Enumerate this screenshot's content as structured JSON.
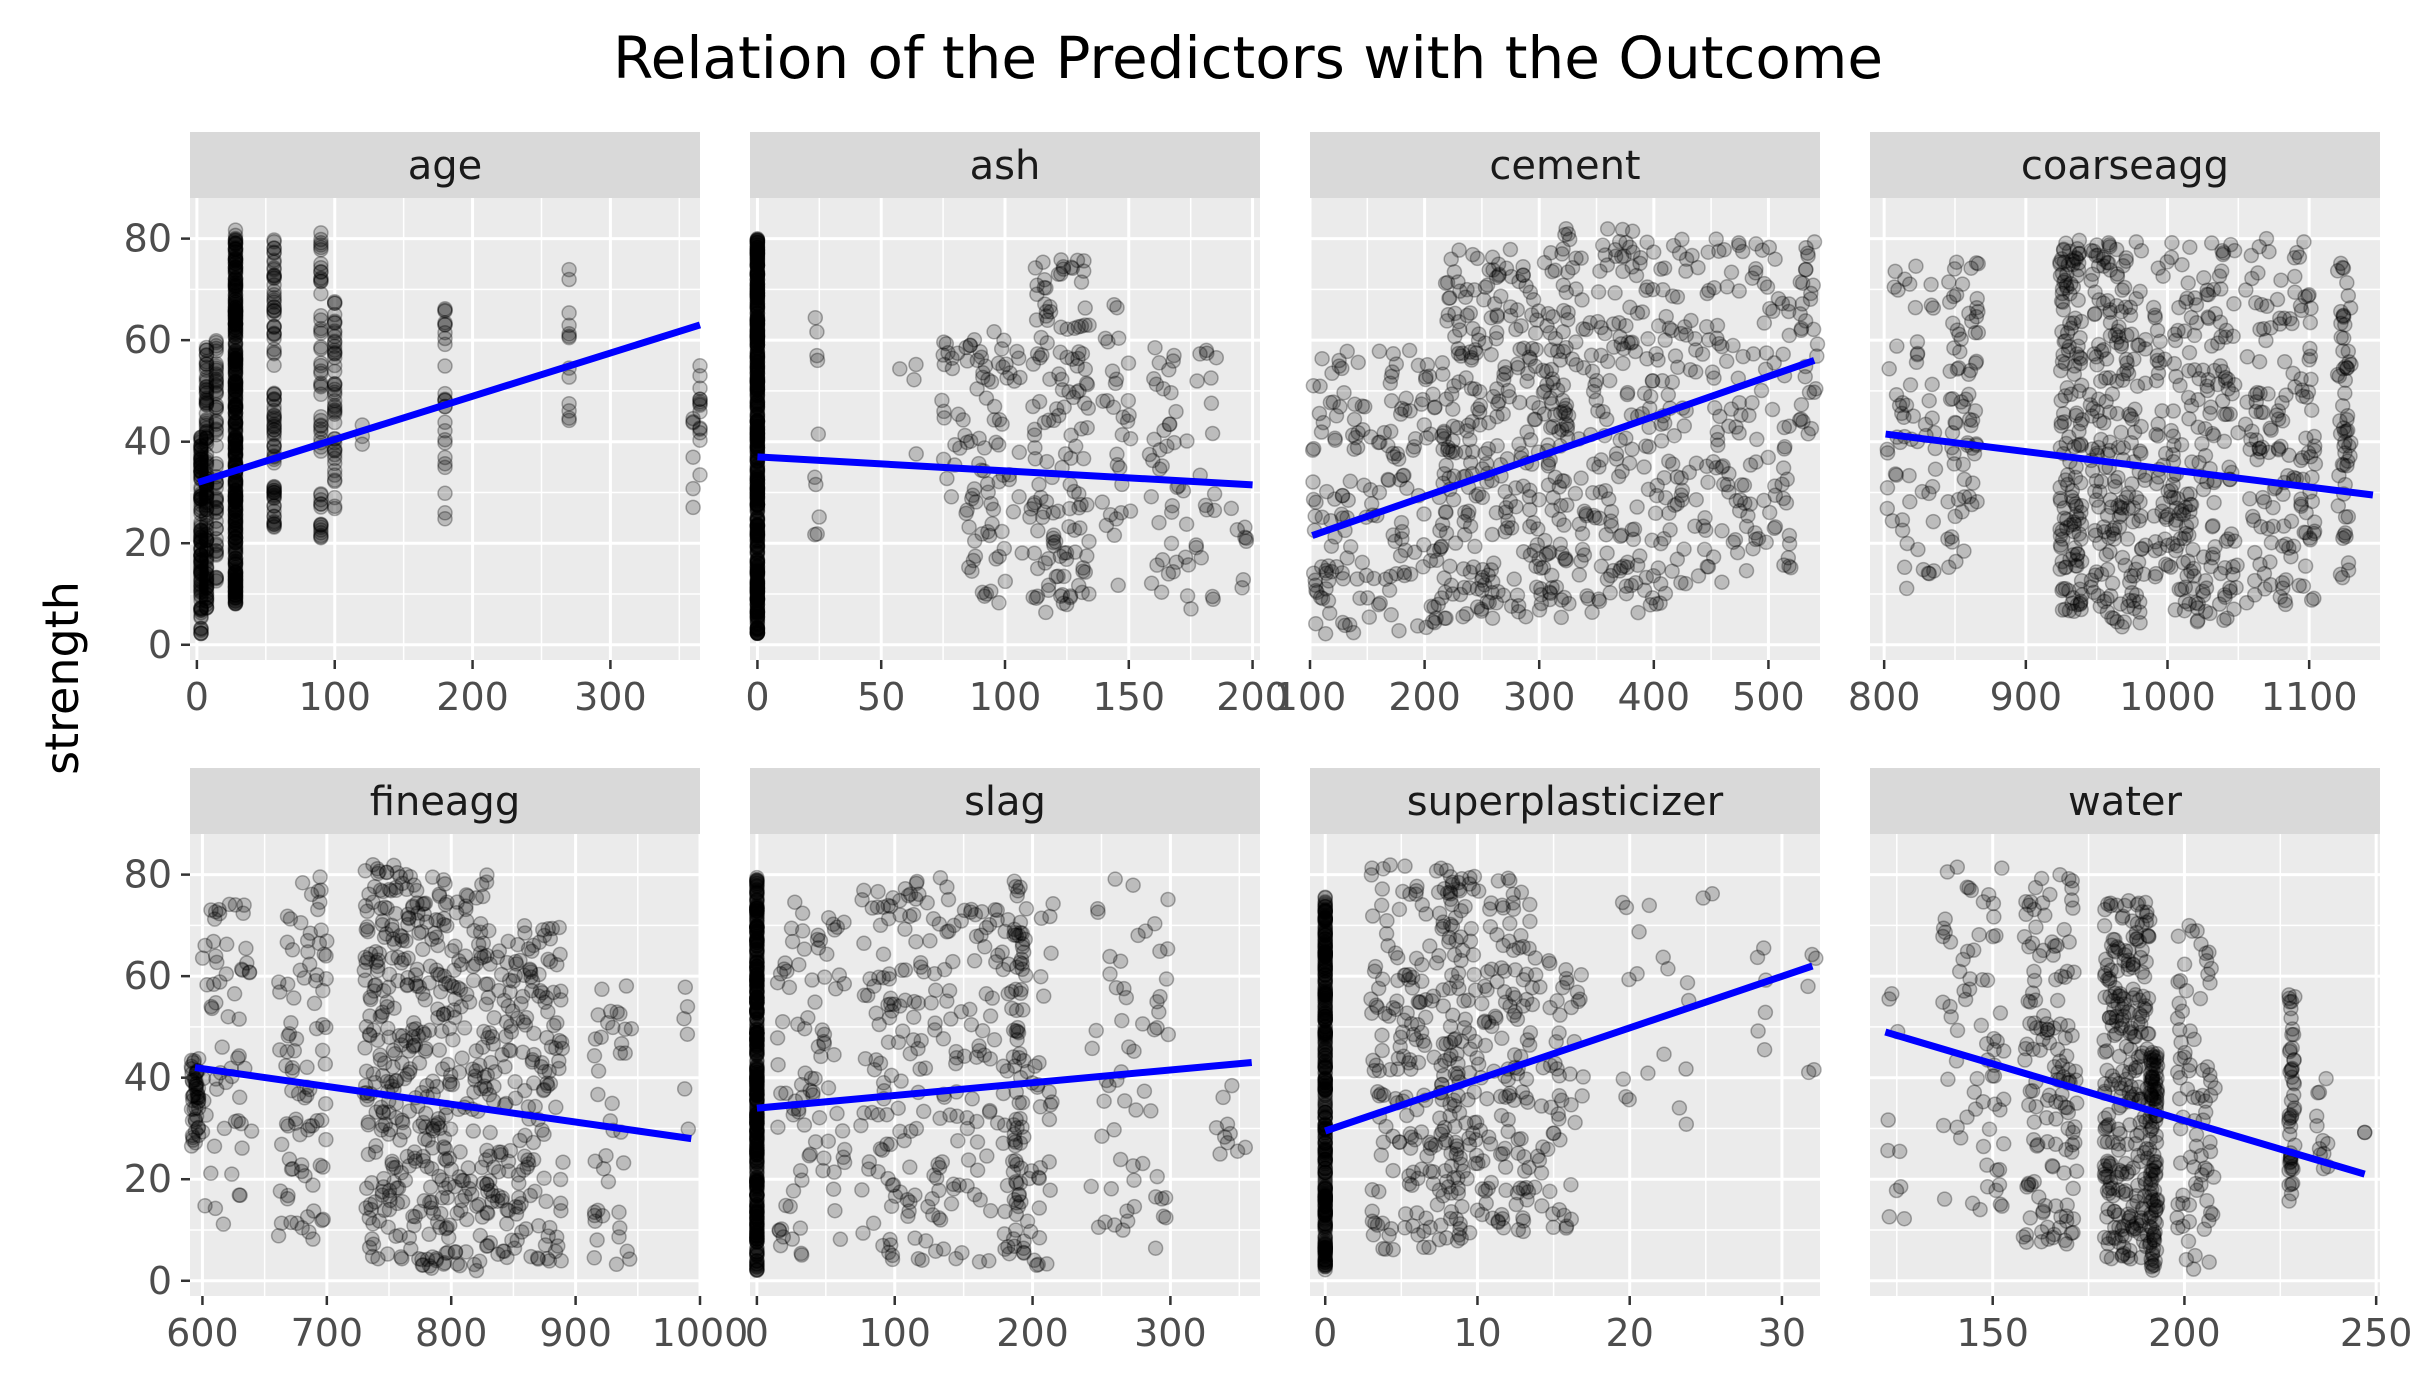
{
  "chart_data": {
    "type": "scatter",
    "title": "Relation of the Predictors with the Outcome",
    "ylabel": "strength",
    "ylim": [
      0,
      85
    ],
    "y_ticks": [
      0,
      20,
      40,
      60,
      80
    ],
    "point_color": "#000000",
    "point_alpha": 0.2,
    "line_color": "#0000ff",
    "panel_background": "#ebebeb",
    "strip_background": "#d9d9d9",
    "grid": true,
    "facets": [
      {
        "name": "age",
        "xlim": [
          -5,
          365
        ],
        "x_ticks": [
          0,
          100,
          200,
          300
        ],
        "fit": {
          "x": [
            1,
            365
          ],
          "y": [
            32,
            63
          ]
        },
        "clusters": [
          {
            "x": 3,
            "jitter": 0,
            "n": 130,
            "y_min": 2,
            "y_max": 41
          },
          {
            "x": 7,
            "jitter": 0,
            "n": 120,
            "y_min": 7,
            "y_max": 59
          },
          {
            "x": 14,
            "jitter": 0,
            "n": 60,
            "y_min": 12,
            "y_max": 60
          },
          {
            "x": 28,
            "jitter": 0,
            "n": 420,
            "y_min": 8,
            "y_max": 82
          },
          {
            "x": 56,
            "jitter": 0,
            "n": 90,
            "y_min": 23,
            "y_max": 80
          },
          {
            "x": 90,
            "jitter": 0,
            "n": 55,
            "y_min": 21,
            "y_max": 82
          },
          {
            "x": 100,
            "jitter": 0,
            "n": 50,
            "y_min": 25,
            "y_max": 70
          },
          {
            "x": 120,
            "jitter": 0,
            "n": 3,
            "y_min": 39,
            "y_max": 44
          },
          {
            "x": 180,
            "jitter": 0,
            "n": 26,
            "y_min": 24,
            "y_max": 72
          },
          {
            "x": 270,
            "jitter": 0,
            "n": 13,
            "y_min": 38,
            "y_max": 74
          },
          {
            "x": 360,
            "jitter": 0,
            "n": 6,
            "y_min": 25,
            "y_max": 47
          },
          {
            "x": 365,
            "jitter": 0,
            "n": 14,
            "y_min": 30,
            "y_max": 56
          }
        ]
      },
      {
        "name": "ash",
        "xlim": [
          -3,
          203
        ],
        "x_ticks": [
          0,
          50,
          100,
          150,
          200
        ],
        "fit": {
          "x": [
            0,
            200
          ],
          "y": [
            37,
            31.5
          ]
        },
        "clusters": [
          {
            "x": 0,
            "jitter": 0,
            "n": 560,
            "y_min": 2,
            "y_max": 80
          },
          {
            "x": 24,
            "jitter": 1,
            "n": 10,
            "y_min": 15,
            "y_max": 67
          },
          {
            "x": 60,
            "jitter": 5,
            "n": 4,
            "y_min": 30,
            "y_max": 64
          },
          {
            "x": 78,
            "jitter": 4,
            "n": 18,
            "y_min": 28,
            "y_max": 61
          },
          {
            "x": 95,
            "jitter": 12,
            "n": 80,
            "y_min": 8,
            "y_max": 62
          },
          {
            "x": 122,
            "jitter": 12,
            "n": 140,
            "y_min": 6,
            "y_max": 76
          },
          {
            "x": 145,
            "jitter": 6,
            "n": 30,
            "y_min": 10,
            "y_max": 68
          },
          {
            "x": 172,
            "jitter": 14,
            "n": 60,
            "y_min": 7,
            "y_max": 60
          },
          {
            "x": 195,
            "jitter": 4,
            "n": 8,
            "y_min": 9,
            "y_max": 30
          }
        ]
      },
      {
        "name": "cement",
        "xlim": [
          100,
          545
        ],
        "x_ticks": [
          100,
          200,
          300,
          400,
          500
        ],
        "fit": {
          "x": [
            102,
            540
          ],
          "y": [
            21.5,
            56
          ]
        },
        "clusters": [
          {
            "x": 160,
            "jitter": 58,
            "n": 180,
            "y_min": 2,
            "y_max": 58
          },
          {
            "x": 270,
            "jitter": 55,
            "n": 320,
            "y_min": 5,
            "y_max": 78
          },
          {
            "x": 370,
            "jitter": 50,
            "n": 220,
            "y_min": 6,
            "y_max": 82
          },
          {
            "x": 470,
            "jitter": 50,
            "n": 160,
            "y_min": 12,
            "y_max": 80
          },
          {
            "x": 535,
            "jitter": 8,
            "n": 30,
            "y_min": 40,
            "y_max": 80
          }
        ]
      },
      {
        "name": "coarseagg",
        "xlim": [
          790,
          1150
        ],
        "x_ticks": [
          800,
          900,
          1000,
          1100
        ],
        "fit": {
          "x": [
            801,
            1145
          ],
          "y": [
            41.5,
            29.5
          ]
        },
        "clusters": [
          {
            "x": 820,
            "jitter": 18,
            "n": 60,
            "y_min": 10,
            "y_max": 75
          },
          {
            "x": 855,
            "jitter": 12,
            "n": 70,
            "y_min": 15,
            "y_max": 76
          },
          {
            "x": 932,
            "jitter": 8,
            "n": 150,
            "y_min": 6,
            "y_max": 80
          },
          {
            "x": 965,
            "jitter": 20,
            "n": 200,
            "y_min": 3,
            "y_max": 80
          },
          {
            "x": 1020,
            "jitter": 30,
            "n": 220,
            "y_min": 4,
            "y_max": 80
          },
          {
            "x": 1080,
            "jitter": 25,
            "n": 150,
            "y_min": 7,
            "y_max": 80
          },
          {
            "x": 1125,
            "jitter": 5,
            "n": 60,
            "y_min": 12,
            "y_max": 78
          }
        ]
      },
      {
        "name": "fineagg",
        "xlim": [
          590,
          1000
        ],
        "x_ticks": [
          600,
          700,
          800,
          900,
          1000
        ],
        "fit": {
          "x": [
            594,
            993
          ],
          "y": [
            42,
            28
          ]
        },
        "clusters": [
          {
            "x": 594,
            "jitter": 3,
            "n": 50,
            "y_min": 26,
            "y_max": 44
          },
          {
            "x": 620,
            "jitter": 20,
            "n": 60,
            "y_min": 10,
            "y_max": 75
          },
          {
            "x": 680,
            "jitter": 20,
            "n": 90,
            "y_min": 8,
            "y_max": 80
          },
          {
            "x": 750,
            "jitter": 20,
            "n": 200,
            "y_min": 4,
            "y_max": 82
          },
          {
            "x": 800,
            "jitter": 30,
            "n": 250,
            "y_min": 2,
            "y_max": 80
          },
          {
            "x": 860,
            "jitter": 30,
            "n": 180,
            "y_min": 3,
            "y_max": 70
          },
          {
            "x": 930,
            "jitter": 15,
            "n": 40,
            "y_min": 3,
            "y_max": 60
          },
          {
            "x": 990,
            "jitter": 3,
            "n": 6,
            "y_min": 28,
            "y_max": 62
          }
        ]
      },
      {
        "name": "slag",
        "xlim": [
          -5,
          365
        ],
        "x_ticks": [
          0,
          100,
          200,
          300
        ],
        "fit": {
          "x": [
            0,
            359
          ],
          "y": [
            34,
            43
          ]
        },
        "clusters": [
          {
            "x": 0,
            "jitter": 0,
            "n": 470,
            "y_min": 2,
            "y_max": 80
          },
          {
            "x": 40,
            "jitter": 25,
            "n": 90,
            "y_min": 5,
            "y_max": 75
          },
          {
            "x": 110,
            "jitter": 35,
            "n": 160,
            "y_min": 4,
            "y_max": 80
          },
          {
            "x": 190,
            "jitter": 4,
            "n": 60,
            "y_min": 5,
            "y_max": 82
          },
          {
            "x": 180,
            "jitter": 35,
            "n": 120,
            "y_min": 3,
            "y_max": 75
          },
          {
            "x": 270,
            "jitter": 30,
            "n": 60,
            "y_min": 6,
            "y_max": 80
          },
          {
            "x": 345,
            "jitter": 12,
            "n": 10,
            "y_min": 22,
            "y_max": 42
          }
        ]
      },
      {
        "name": "superplasticizer",
        "xlim": [
          -1,
          32.5
        ],
        "x_ticks": [
          0,
          10,
          20,
          30
        ],
        "fit": {
          "x": [
            0,
            32
          ],
          "y": [
            29.5,
            62
          ]
        },
        "clusters": [
          {
            "x": 0,
            "jitter": 0,
            "n": 380,
            "y_min": 2,
            "y_max": 76
          },
          {
            "x": 6,
            "jitter": 3,
            "n": 200,
            "y_min": 6,
            "y_max": 82
          },
          {
            "x": 10.5,
            "jitter": 3,
            "n": 200,
            "y_min": 8,
            "y_max": 80
          },
          {
            "x": 15,
            "jitter": 2,
            "n": 60,
            "y_min": 10,
            "y_max": 65
          },
          {
            "x": 22.5,
            "jitter": 3,
            "n": 20,
            "y_min": 29,
            "y_max": 82
          },
          {
            "x": 28.5,
            "jitter": 0.6,
            "n": 6,
            "y_min": 40,
            "y_max": 73
          },
          {
            "x": 32,
            "jitter": 0.3,
            "n": 5,
            "y_min": 40,
            "y_max": 70
          }
        ]
      },
      {
        "name": "water",
        "xlim": [
          118,
          251
        ],
        "x_ticks": [
          150,
          200,
          250
        ],
        "fit": {
          "x": [
            122,
            247
          ],
          "y": [
            49,
            21
          ]
        },
        "clusters": [
          {
            "x": 124,
            "jitter": 3,
            "n": 10,
            "y_min": 7,
            "y_max": 60
          },
          {
            "x": 145,
            "jitter": 8,
            "n": 70,
            "y_min": 13,
            "y_max": 82
          },
          {
            "x": 165,
            "jitter": 7,
            "n": 140,
            "y_min": 7,
            "y_max": 80
          },
          {
            "x": 185,
            "jitter": 6,
            "n": 260,
            "y_min": 3,
            "y_max": 75
          },
          {
            "x": 192,
            "jitter": 1,
            "n": 110,
            "y_min": 2,
            "y_max": 45
          },
          {
            "x": 203,
            "jitter": 5,
            "n": 80,
            "y_min": 2,
            "y_max": 70
          },
          {
            "x": 228,
            "jitter": 0.8,
            "n": 50,
            "y_min": 15,
            "y_max": 57
          },
          {
            "x": 237,
            "jitter": 3,
            "n": 12,
            "y_min": 22,
            "y_max": 40
          },
          {
            "x": 247,
            "jitter": 0,
            "n": 2,
            "y_min": 28,
            "y_max": 30
          }
        ]
      }
    ]
  }
}
